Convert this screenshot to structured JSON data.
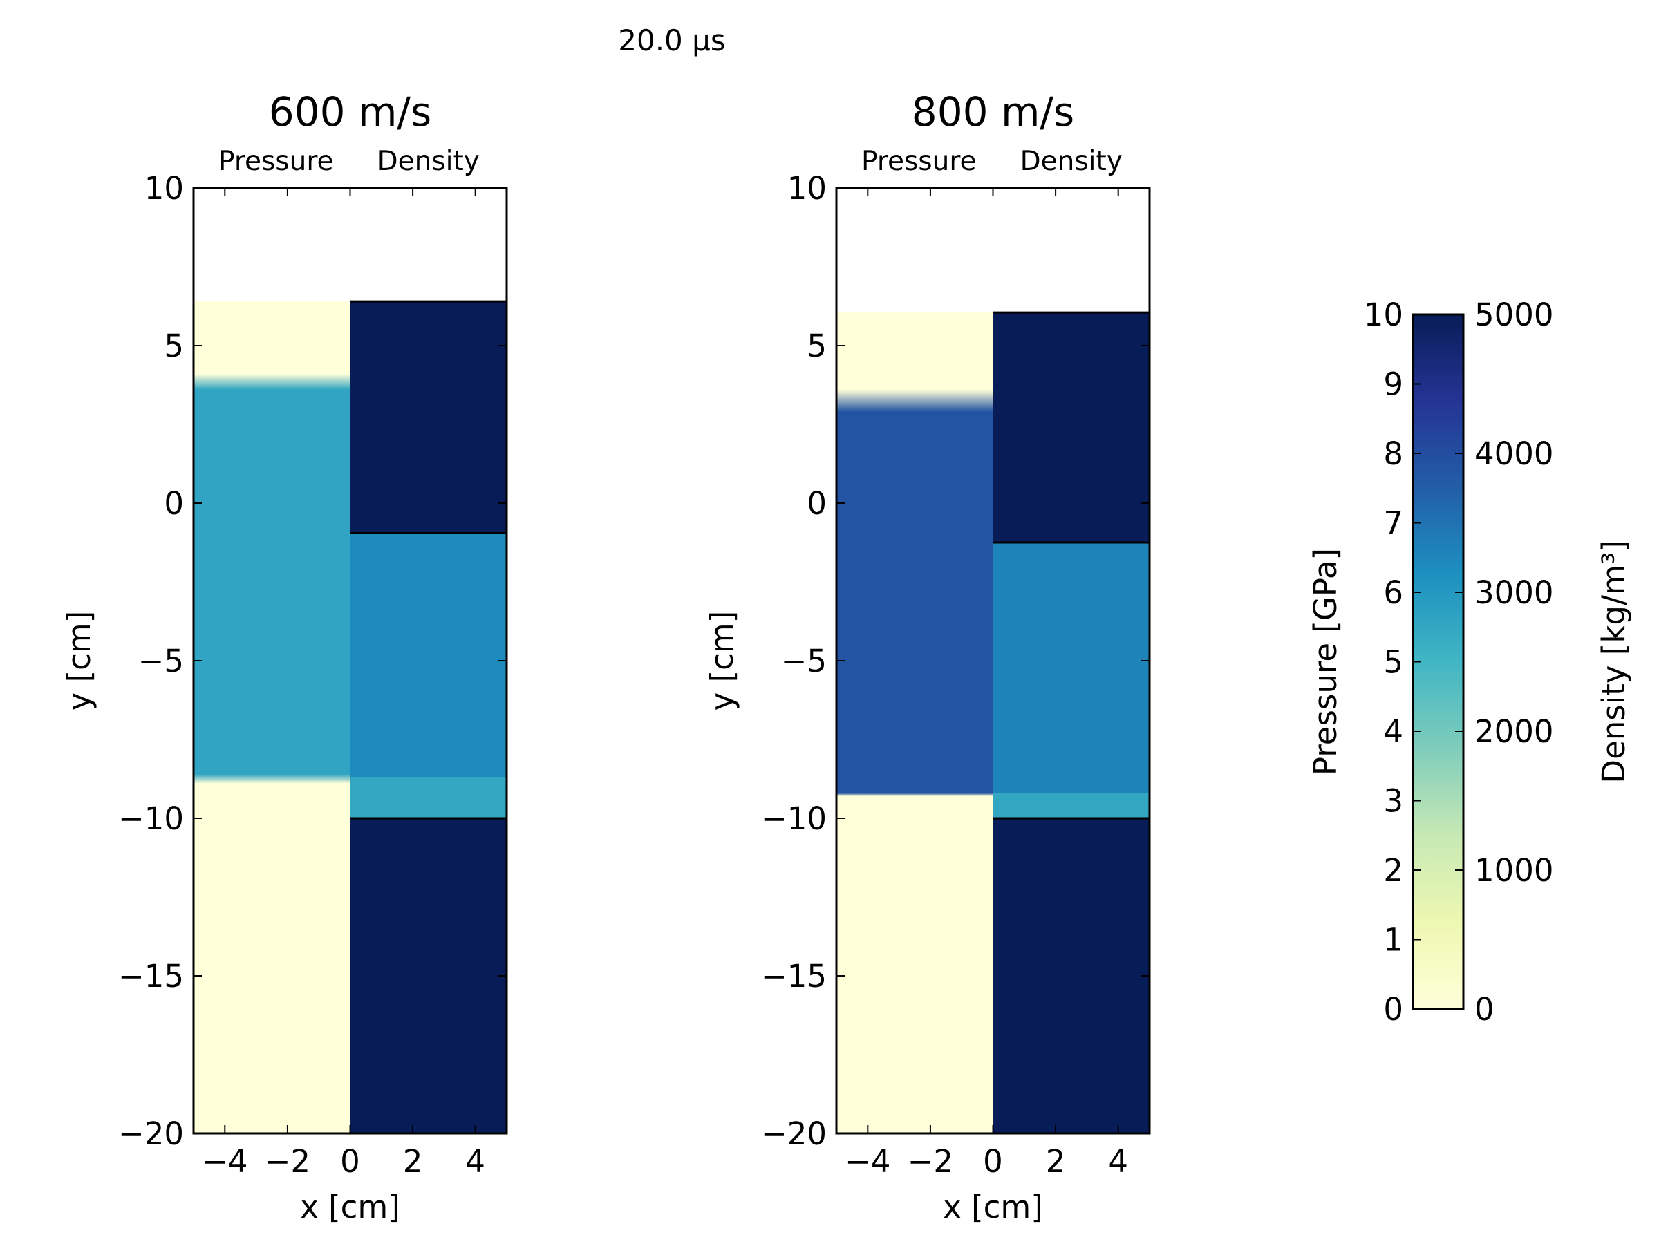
{
  "figure_title": "20.0 μs",
  "chart_data": {
    "type": "heatmap",
    "time": "20.0 μs",
    "panels": [
      {
        "title": "600 m/s",
        "column_labels": [
          "Pressure",
          "Density"
        ],
        "xlabel": "x [cm]",
        "ylabel": "y [cm]",
        "xlim": [
          -5,
          5
        ],
        "ylim": [
          -20,
          10
        ],
        "xticks": [
          -4,
          -2,
          0,
          2,
          4
        ],
        "xtick_labels": [
          "−4",
          "−2",
          "0",
          "2",
          "4"
        ],
        "yticks": [
          10,
          5,
          0,
          -5,
          -10,
          -15,
          -20
        ],
        "ytick_labels": [
          "10",
          "5",
          "0",
          "−5",
          "−10",
          "−15",
          "−20"
        ],
        "pressure": {
          "x_range": [
            -5,
            0
          ],
          "y_top": 6.4,
          "bands": [
            {
              "y_from": 6.4,
              "y_to": 4.1,
              "value_gpa": 0
            },
            {
              "y_from": 3.6,
              "y_to": -8.6,
              "value_gpa": 5.6
            },
            {
              "y_from": -8.9,
              "y_to": -20,
              "value_gpa": 0
            }
          ]
        },
        "density": {
          "x_range": [
            0,
            5
          ],
          "blocks": [
            {
              "y_from": 6.4,
              "y_to": -0.95,
              "value_kg_m3": 5000
            },
            {
              "y_from": -0.95,
              "y_to": -8.7,
              "value_kg_m3": 3200
            },
            {
              "y_from": -8.7,
              "y_to": -10,
              "value_kg_m3": 2750
            },
            {
              "y_from": -10,
              "y_to": -20,
              "value_kg_m3": 5000
            }
          ],
          "boundaries_y": [
            6.4,
            -0.95,
            -10
          ]
        }
      },
      {
        "title": "800 m/s",
        "column_labels": [
          "Pressure",
          "Density"
        ],
        "xlabel": "x [cm]",
        "ylabel": "y [cm]",
        "xlim": [
          -5,
          5
        ],
        "ylim": [
          -20,
          10
        ],
        "xticks": [
          -4,
          -2,
          0,
          2,
          4
        ],
        "xtick_labels": [
          "−4",
          "−2",
          "0",
          "2",
          "4"
        ],
        "yticks": [
          10,
          5,
          0,
          -5,
          -10,
          -15,
          -20
        ],
        "ytick_labels": [
          "10",
          "5",
          "0",
          "−5",
          "−10",
          "−15",
          "−20"
        ],
        "pressure": {
          "x_range": [
            -5,
            0
          ],
          "y_top": 6.05,
          "bands": [
            {
              "y_from": 6.05,
              "y_to": 3.6,
              "value_gpa": 0
            },
            {
              "y_from": 2.9,
              "y_to": -9.2,
              "value_gpa": 7.8
            },
            {
              "y_from": -9.3,
              "y_to": -20,
              "value_gpa": 0
            }
          ]
        },
        "density": {
          "x_range": [
            0,
            5
          ],
          "blocks": [
            {
              "y_from": 6.05,
              "y_to": -1.25,
              "value_kg_m3": 5000
            },
            {
              "y_from": -1.25,
              "y_to": -9.2,
              "value_kg_m3": 3300
            },
            {
              "y_from": -9.2,
              "y_to": -10,
              "value_kg_m3": 2750
            },
            {
              "y_from": -10,
              "y_to": -20,
              "value_kg_m3": 5000
            }
          ],
          "boundaries_y": [
            6.05,
            -1.25,
            -10
          ]
        }
      }
    ],
    "colorbar": {
      "colormap": "YlGnBu",
      "colormap_stops": [
        "#ffffd9",
        "#edf8b1",
        "#c7e9b4",
        "#7fcdbb",
        "#41b6c4",
        "#1d91c0",
        "#225ea8",
        "#253494",
        "#081d58"
      ],
      "left_label": "Pressure [GPa]",
      "right_label": "Density [kg/m³]",
      "pressure_range": [
        0,
        10
      ],
      "pressure_ticks": [
        0,
        1,
        2,
        3,
        4,
        5,
        6,
        7,
        8,
        9,
        10
      ],
      "pressure_tick_labels": [
        "0",
        "1",
        "2",
        "3",
        "4",
        "5",
        "6",
        "7",
        "8",
        "9",
        "10"
      ],
      "density_range": [
        0,
        5000
      ],
      "density_ticks": [
        0,
        1000,
        2000,
        3000,
        4000,
        5000
      ],
      "density_tick_labels": [
        "0",
        "1000",
        "2000",
        "3000",
        "4000",
        "5000"
      ]
    }
  }
}
